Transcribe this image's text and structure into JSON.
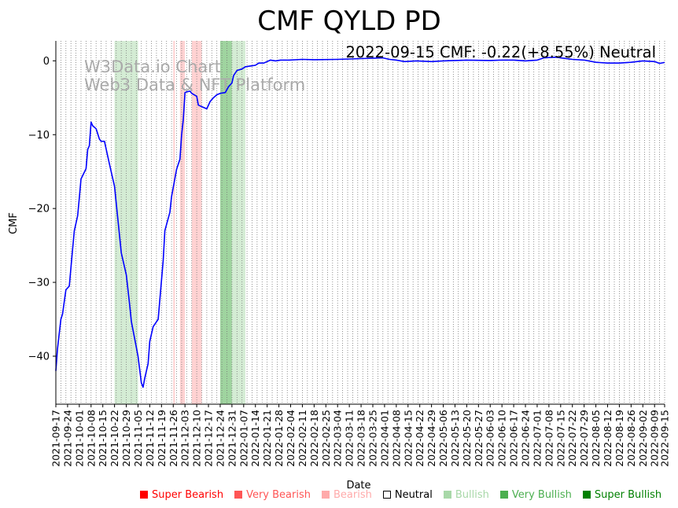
{
  "chart_data": {
    "type": "line",
    "title": "CMF QYLD PD",
    "xlabel": "Date",
    "ylabel": "CMF",
    "ylim": [
      -46.5,
      2.7
    ],
    "yticks": [
      0,
      -10,
      -20,
      -30,
      -40
    ],
    "ytick_labels": [
      "0",
      "−10",
      "−20",
      "−30",
      "−40"
    ],
    "x_start": "2021-09-17",
    "x_end": "2022-09-15",
    "xticks": [
      "2021-09-17",
      "2021-09-24",
      "2021-10-01",
      "2021-10-08",
      "2021-10-15",
      "2021-10-22",
      "2021-10-29",
      "2021-11-05",
      "2021-11-12",
      "2021-11-19",
      "2021-11-26",
      "2021-12-03",
      "2021-12-10",
      "2021-12-17",
      "2021-12-24",
      "2021-12-31",
      "2022-01-07",
      "2022-01-14",
      "2022-01-21",
      "2022-01-28",
      "2022-02-04",
      "2022-02-11",
      "2022-02-18",
      "2022-02-25",
      "2022-03-04",
      "2022-03-11",
      "2022-03-18",
      "2022-03-25",
      "2022-04-01",
      "2022-04-08",
      "2022-04-15",
      "2022-04-22",
      "2022-04-29",
      "2022-05-06",
      "2022-05-13",
      "2022-05-20",
      "2022-05-27",
      "2022-06-03",
      "2022-06-10",
      "2022-06-17",
      "2022-06-24",
      "2022-07-01",
      "2022-07-08",
      "2022-07-15",
      "2022-07-22",
      "2022-07-29",
      "2022-08-05",
      "2022-08-12",
      "2022-08-19",
      "2022-08-26",
      "2022-09-02",
      "2022-09-09",
      "2022-09-15"
    ],
    "grid": "vertical-dotted",
    "series": [
      {
        "name": "CMF",
        "color": "#0000ff",
        "points": [
          [
            "2021-09-17",
            -42
          ],
          [
            "2021-09-18",
            -39
          ],
          [
            "2021-09-20",
            -35
          ],
          [
            "2021-09-21",
            -34.3
          ],
          [
            "2021-09-23",
            -31
          ],
          [
            "2021-09-25",
            -30.5
          ],
          [
            "2021-09-27",
            -25.5
          ],
          [
            "2021-09-28",
            -23
          ],
          [
            "2021-09-30",
            -21
          ],
          [
            "2021-10-01",
            -18.5
          ],
          [
            "2021-10-02",
            -16
          ],
          [
            "2021-10-05",
            -14.6
          ],
          [
            "2021-10-06",
            -12
          ],
          [
            "2021-10-07",
            -11.5
          ],
          [
            "2021-10-08",
            -8.3
          ],
          [
            "2021-10-09",
            -8.8
          ],
          [
            "2021-10-11",
            -9.2
          ],
          [
            "2021-10-13",
            -10.6
          ],
          [
            "2021-10-14",
            -10.9
          ],
          [
            "2021-10-16",
            -10.9
          ],
          [
            "2021-10-19",
            -14
          ],
          [
            "2021-10-22",
            -17
          ],
          [
            "2021-10-24",
            -21.5
          ],
          [
            "2021-10-26",
            -26
          ],
          [
            "2021-10-29",
            -29
          ],
          [
            "2021-10-31",
            -33
          ],
          [
            "2021-11-01",
            -35.3
          ],
          [
            "2021-11-05",
            -40
          ],
          [
            "2021-11-07",
            -43.6
          ],
          [
            "2021-11-08",
            -44.2
          ],
          [
            "2021-11-09",
            -43
          ],
          [
            "2021-11-11",
            -41
          ],
          [
            "2021-11-12",
            -38
          ],
          [
            "2021-11-14",
            -36
          ],
          [
            "2021-11-17",
            -35
          ],
          [
            "2021-11-20",
            -27
          ],
          [
            "2021-11-21",
            -23
          ],
          [
            "2021-11-24",
            -20.5
          ],
          [
            "2021-11-25",
            -18.4
          ],
          [
            "2021-11-28",
            -14.7
          ],
          [
            "2021-11-30",
            -13.3
          ],
          [
            "2021-12-01",
            -10
          ],
          [
            "2021-12-02",
            -8
          ],
          [
            "2021-12-03",
            -4.3
          ],
          [
            "2021-12-04",
            -4.2
          ],
          [
            "2021-12-06",
            -4.1
          ],
          [
            "2021-12-07",
            -4.4
          ],
          [
            "2021-12-10",
            -4.8
          ],
          [
            "2021-12-11",
            -6
          ],
          [
            "2021-12-13",
            -6.2
          ],
          [
            "2021-12-16",
            -6.5
          ],
          [
            "2021-12-18",
            -5.5
          ],
          [
            "2021-12-20",
            -5
          ],
          [
            "2021-12-22",
            -4.6
          ],
          [
            "2021-12-24",
            -4.4
          ],
          [
            "2021-12-27",
            -4.3
          ],
          [
            "2021-12-29",
            -3.5
          ],
          [
            "2021-12-31",
            -3
          ],
          [
            "2022-01-01",
            -2
          ],
          [
            "2022-01-03",
            -1.3
          ],
          [
            "2022-01-06",
            -1.1
          ],
          [
            "2022-01-08",
            -0.8
          ],
          [
            "2022-01-11",
            -0.7
          ],
          [
            "2022-01-14",
            -0.6
          ],
          [
            "2022-01-16",
            -0.3
          ],
          [
            "2022-01-19",
            -0.3
          ],
          [
            "2022-01-23",
            0.1
          ],
          [
            "2022-01-26",
            0
          ],
          [
            "2022-01-29",
            0.1
          ],
          [
            "2022-02-03",
            0.1
          ],
          [
            "2022-02-11",
            0.2
          ],
          [
            "2022-02-18",
            0.15
          ],
          [
            "2022-03-04",
            0.2
          ],
          [
            "2022-03-18",
            0.3
          ],
          [
            "2022-03-25",
            0.35
          ],
          [
            "2022-03-31",
            0.4
          ],
          [
            "2022-04-04",
            0.2
          ],
          [
            "2022-04-08",
            0.1
          ],
          [
            "2022-04-13",
            -0.1
          ],
          [
            "2022-04-20",
            0
          ],
          [
            "2022-04-29",
            -0.1
          ],
          [
            "2022-05-06",
            0
          ],
          [
            "2022-05-13",
            0.05
          ],
          [
            "2022-05-20",
            0.1
          ],
          [
            "2022-06-03",
            0.05
          ],
          [
            "2022-06-10",
            0.1
          ],
          [
            "2022-06-17",
            0.1
          ],
          [
            "2022-06-24",
            0
          ],
          [
            "2022-07-01",
            0.1
          ],
          [
            "2022-07-05",
            0.4
          ],
          [
            "2022-07-12",
            0.5
          ],
          [
            "2022-07-15",
            0.4
          ],
          [
            "2022-07-22",
            0.2
          ],
          [
            "2022-07-29",
            0.1
          ],
          [
            "2022-08-05",
            -0.2
          ],
          [
            "2022-08-12",
            -0.3
          ],
          [
            "2022-08-19",
            -0.3
          ],
          [
            "2022-08-26",
            -0.2
          ],
          [
            "2022-09-02",
            0
          ],
          [
            "2022-09-09",
            -0.1
          ],
          [
            "2022-09-12",
            -0.35
          ],
          [
            "2022-09-15",
            -0.22
          ]
        ]
      }
    ],
    "bands": [
      {
        "start": "2021-10-22",
        "end": "2021-11-05",
        "color": "#d4ecd4"
      },
      {
        "start": "2021-11-26",
        "end": "2021-11-27",
        "color": "#ffd2d2"
      },
      {
        "start": "2021-11-30",
        "end": "2021-12-03",
        "color": "#ffd2d2"
      },
      {
        "start": "2021-12-07",
        "end": "2021-12-13",
        "color": "#ffd2d2"
      },
      {
        "start": "2021-12-24",
        "end": "2021-12-31",
        "color": "#9fd49f"
      },
      {
        "start": "2021-12-31",
        "end": "2022-01-08",
        "color": "#d4ecd4"
      }
    ],
    "annotation": "2022-09-15 CMF: -0.22(+8.55%) Neutral",
    "watermark": [
      "W3Data.io Chart",
      "Web3 Data & NFT Platform"
    ],
    "legend": [
      {
        "label": "Super Bearish",
        "marker": "■",
        "color": "#ff0000",
        "text_color": "#ff0000"
      },
      {
        "label": "Very Bearish",
        "marker": "■",
        "color": "#ff5555",
        "text_color": "#ff5555"
      },
      {
        "label": "Bearish",
        "marker": "■",
        "color": "#ffaaaa",
        "text_color": "#ffaaaa"
      },
      {
        "label": "Neutral",
        "marker": "□",
        "color": "#000000",
        "text_color": "#000000"
      },
      {
        "label": "Bullish",
        "marker": "■",
        "color": "#a8d8a8",
        "text_color": "#a8d8a8"
      },
      {
        "label": "Very Bullish",
        "marker": "■",
        "color": "#4caf50",
        "text_color": "#4caf50"
      },
      {
        "label": "Super Bullish",
        "marker": "■",
        "color": "#008000",
        "text_color": "#008000"
      }
    ]
  }
}
